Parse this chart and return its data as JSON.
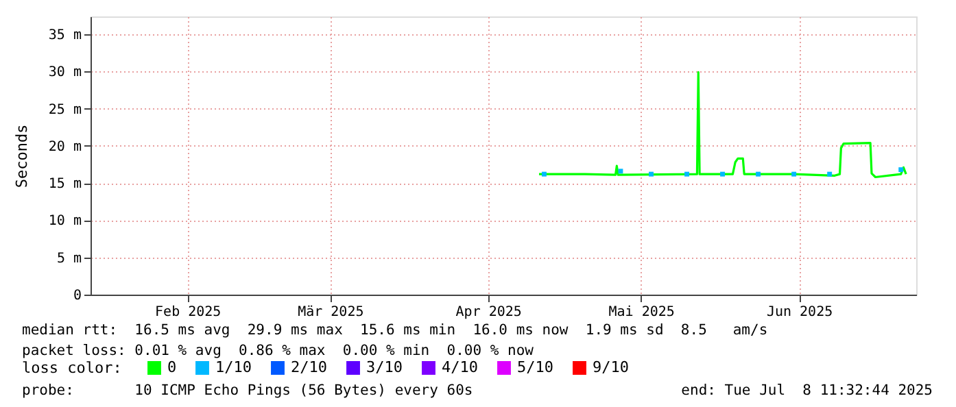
{
  "chart_data": {
    "type": "line",
    "ylabel": "Seconds",
    "legend_title": "loss color:",
    "xlim": [
      "2025-01-13",
      "2025-06-24"
    ],
    "xticks": [
      {
        "value": "2025-02-01",
        "label": "Feb 2025"
      },
      {
        "value": "2025-03-01",
        "label": "Mär 2025"
      },
      {
        "value": "2025-04-01",
        "label": "Apr 2025"
      },
      {
        "value": "2025-05-01",
        "label": "Mai 2025"
      },
      {
        "value": "2025-06-01",
        "label": "Jun 2025"
      }
    ],
    "ylim": [
      0,
      37.4
    ],
    "yticks": [
      0,
      {
        "value": 5,
        "label": "5 m"
      },
      {
        "value": 10,
        "label": "10 m"
      },
      {
        "value": 15,
        "label": "15 m"
      },
      {
        "value": 20,
        "label": "20 m"
      },
      {
        "value": 25,
        "label": "25 m"
      },
      {
        "value": 30,
        "label": "30 m"
      },
      {
        "value": 35,
        "label": "35 m"
      }
    ],
    "grid": true,
    "legend": "bottom left",
    "series": [
      {
        "name": "0",
        "color": "#00ff00",
        "x": [
          "2025-04-11",
          "2025-04-20",
          "2025-04-26",
          "2025-04-26T06:00",
          "2025-04-26T12:00",
          "2025-05-12",
          "2025-05-12T06:00",
          "2025-05-12T12:00",
          "2025-05-19",
          "2025-05-19T12:00",
          "2025-05-20",
          "2025-05-21",
          "2025-05-21T06:00",
          "2025-05-31",
          "2025-06-08",
          "2025-06-09",
          "2025-06-09T06:00",
          "2025-06-09T18:00",
          "2025-06-15",
          "2025-06-15T06:00",
          "2025-06-16",
          "2025-06-21",
          "2025-06-21T12:00",
          "2025-06-22"
        ],
        "values": [
          16.2,
          16.2,
          16.1,
          17.3,
          16.1,
          16.2,
          29.9,
          16.2,
          16.2,
          17.8,
          18.3,
          18.3,
          16.2,
          16.2,
          16.0,
          16.2,
          19.7,
          20.3,
          20.4,
          16.3,
          15.8,
          16.2,
          17.1,
          16.2
        ]
      },
      {
        "name": "1/10",
        "color": "#00b8ff",
        "type": "scatter",
        "marker": "square",
        "x": [
          "2025-04-12",
          "2025-04-27",
          "2025-05-03",
          "2025-05-10",
          "2025-05-17",
          "2025-05-24",
          "2025-05-31",
          "2025-06-07",
          "2025-06-21"
        ],
        "values": [
          16.2,
          16.6,
          16.2,
          16.2,
          16.2,
          16.2,
          16.2,
          16.2,
          16.8
        ]
      },
      {
        "name": "2/10",
        "color": "#0059ff",
        "type": "scatter",
        "marker": "square"
      },
      {
        "name": "3/10",
        "color": "#5e00ff",
        "type": "scatter",
        "marker": "square"
      },
      {
        "name": "4/10",
        "color": "#7e00ff",
        "type": "scatter",
        "marker": "square"
      },
      {
        "name": "5/10",
        "color": "#dd00ff",
        "type": "scatter",
        "marker": "square"
      },
      {
        "name": "9/10",
        "color": "#ff0000",
        "type": "scatter",
        "marker": "square"
      }
    ],
    "annotations": [
      "median rtt:  16.5 ms avg  29.9 ms max  15.6 ms min  16.0 ms now  1.9 ms sd  8.5   am/s",
      "packet loss: 0.01 % avg  0.86 % max  0.00 % min  0.00 % now",
      "probe:       10 ICMP Echo Pings (56 Bytes) every 60s",
      "end: Tue Jul  8 11:32:44 2025"
    ]
  }
}
